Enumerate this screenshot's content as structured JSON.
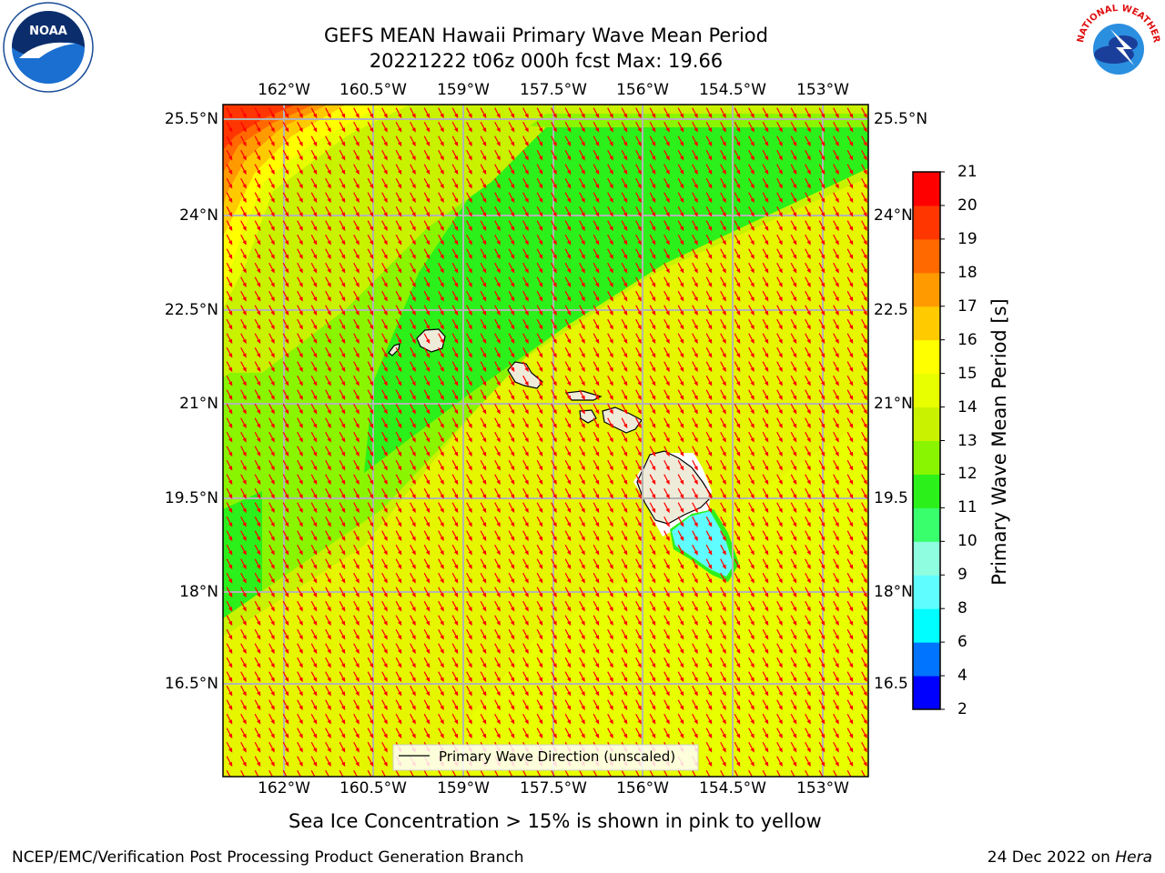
{
  "header": {
    "title_line1": "GEFS MEAN Hawaii Primary Wave Mean Period",
    "title_line2": "20221222 t06z 000h fcst   Max: 19.66"
  },
  "logos": {
    "left": {
      "name": "noaa-logo",
      "text": "NOAA"
    },
    "right": {
      "name": "nws-logo",
      "text": "NATIONAL WEATHER SERVICE"
    }
  },
  "map": {
    "lon_ticks": [
      "162°W",
      "160.5°W",
      "159°W",
      "157.5°W",
      "156°W",
      "154.5°W",
      "153°W"
    ],
    "lat_ticks_left": [
      "25.5°N",
      "24°N",
      "22.5°N",
      "21°N",
      "19.5°N",
      "18°N",
      "16.5°N"
    ],
    "lat_ticks_right": [
      "25.5°N",
      "24°N",
      "22.5",
      "21°N",
      "19.5",
      "18°N",
      "16.5"
    ],
    "legend_label": "Primary Wave Direction (unscaled)",
    "arrow_color": "#ff0000",
    "land_color": "#eeebd9",
    "grid_color": "#b4b4b4"
  },
  "colorbar": {
    "label": "Primary Wave Mean Period [s]",
    "ticks": [
      "2",
      "4",
      "6",
      "8",
      "9",
      "10",
      "11",
      "12",
      "13",
      "14",
      "15",
      "16",
      "17",
      "18",
      "19",
      "20",
      "21"
    ],
    "colors": [
      "#0000ff",
      "#0074ff",
      "#00fdff",
      "#5ffdff",
      "#8ffddf",
      "#3aff6d",
      "#2bf01a",
      "#8af500",
      "#c8f200",
      "#e8ff00",
      "#ffff00",
      "#ffcb00",
      "#ff9a00",
      "#ff6900",
      "#ff3600",
      "#ff0000"
    ]
  },
  "footnote": "Sea Ice Concentration > 15% is shown in pink to yellow",
  "footer": {
    "left": "NCEP/EMC/Verification Post Processing Product Generation Branch",
    "right_prefix": "24 Dec 2022 on ",
    "right_host": "Hera"
  }
}
